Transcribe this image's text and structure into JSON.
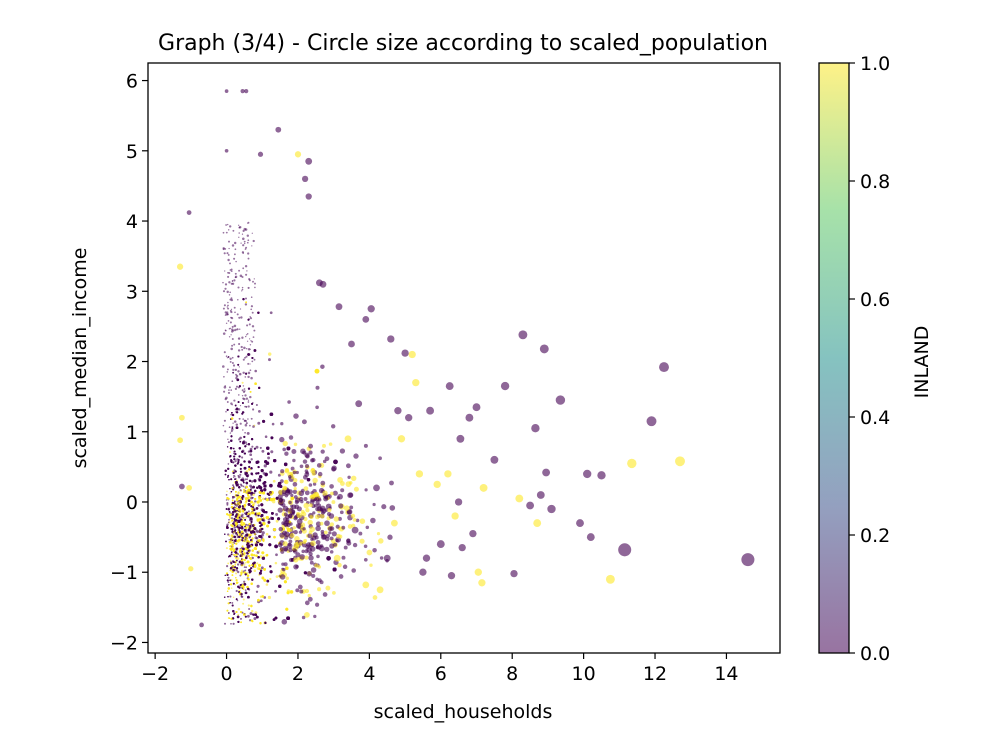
{
  "chart_data": {
    "type": "scatter",
    "title": "Graph (3/4) - Circle size according to scaled_population",
    "xlabel": "scaled_households",
    "ylabel": "scaled_median_income",
    "xlim": [
      -2.2,
      15.5
    ],
    "ylim": [
      -2.15,
      6.25
    ],
    "xticks": [
      -2,
      0,
      2,
      4,
      6,
      8,
      10,
      12,
      14
    ],
    "yticks": [
      -2,
      -1,
      0,
      1,
      2,
      3,
      4,
      5,
      6
    ],
    "grid": false,
    "colorbar": {
      "label": "INLAND",
      "range": [
        0.0,
        1.0
      ],
      "ticks": [
        0.0,
        0.2,
        0.4,
        0.6,
        0.8,
        1.0
      ],
      "colormap": "viridis",
      "alpha": 0.55,
      "low_color": "#440154",
      "high_color": "#fde725"
    },
    "points": [
      {
        "x": 14.6,
        "y": -0.82,
        "inland": 0,
        "size": 2.2
      },
      {
        "x": 11.15,
        "y": -0.68,
        "inland": 0,
        "size": 2.2
      },
      {
        "x": 12.7,
        "y": 0.58,
        "inland": 1,
        "size": 1.6
      },
      {
        "x": 12.25,
        "y": 1.92,
        "inland": 0,
        "size": 1.6
      },
      {
        "x": 11.9,
        "y": 1.15,
        "inland": 0,
        "size": 1.6
      },
      {
        "x": 11.35,
        "y": 0.55,
        "inland": 1,
        "size": 1.5
      },
      {
        "x": 10.75,
        "y": -1.1,
        "inland": 1,
        "size": 1.4
      },
      {
        "x": 10.5,
        "y": 0.38,
        "inland": 0,
        "size": 1.3
      },
      {
        "x": 10.1,
        "y": 0.4,
        "inland": 0,
        "size": 1.3
      },
      {
        "x": 10.2,
        "y": -0.5,
        "inland": 0,
        "size": 1.2
      },
      {
        "x": 9.9,
        "y": -0.3,
        "inland": 0,
        "size": 1.2
      },
      {
        "x": 9.35,
        "y": 1.45,
        "inland": 0,
        "size": 1.5
      },
      {
        "x": 9.1,
        "y": -0.1,
        "inland": 0,
        "size": 1.3
      },
      {
        "x": 8.9,
        "y": 2.18,
        "inland": 0,
        "size": 1.4
      },
      {
        "x": 8.3,
        "y": 2.38,
        "inland": 0,
        "size": 1.4
      },
      {
        "x": 8.65,
        "y": 1.05,
        "inland": 0,
        "size": 1.3
      },
      {
        "x": 8.95,
        "y": 0.42,
        "inland": 0,
        "size": 1.2
      },
      {
        "x": 8.8,
        "y": 0.1,
        "inland": 0,
        "size": 1.2
      },
      {
        "x": 8.5,
        "y": -0.05,
        "inland": 0,
        "size": 1.2
      },
      {
        "x": 8.7,
        "y": -0.3,
        "inland": 1,
        "size": 1.2
      },
      {
        "x": 8.2,
        "y": 0.05,
        "inland": 1,
        "size": 1.2
      },
      {
        "x": 7.8,
        "y": 1.65,
        "inland": 0,
        "size": 1.3
      },
      {
        "x": 7.5,
        "y": 0.6,
        "inland": 0,
        "size": 1.2
      },
      {
        "x": 7.2,
        "y": 0.2,
        "inland": 1,
        "size": 1.2
      },
      {
        "x": 7.05,
        "y": -1.0,
        "inland": 1,
        "size": 1.1
      },
      {
        "x": 7.15,
        "y": -1.15,
        "inland": 1,
        "size": 1.1
      },
      {
        "x": 8.05,
        "y": -1.02,
        "inland": 0,
        "size": 1.1
      },
      {
        "x": 7.0,
        "y": 1.35,
        "inland": 0,
        "size": 1.2
      },
      {
        "x": 6.8,
        "y": 1.2,
        "inland": 0,
        "size": 1.2
      },
      {
        "x": 6.55,
        "y": 0.9,
        "inland": 0,
        "size": 1.2
      },
      {
        "x": 6.25,
        "y": 1.65,
        "inland": 0,
        "size": 1.2
      },
      {
        "x": 6.0,
        "y": -0.6,
        "inland": 0,
        "size": 1.2
      },
      {
        "x": 6.4,
        "y": -0.2,
        "inland": 1,
        "size": 1.1
      },
      {
        "x": 6.6,
        "y": -0.65,
        "inland": 0,
        "size": 1.1
      },
      {
        "x": 6.9,
        "y": -0.45,
        "inland": 0,
        "size": 1.1
      },
      {
        "x": 6.3,
        "y": -1.05,
        "inland": 0,
        "size": 1.1
      },
      {
        "x": 5.5,
        "y": -1.0,
        "inland": 0,
        "size": 1.1
      },
      {
        "x": 5.7,
        "y": 1.3,
        "inland": 0,
        "size": 1.2
      },
      {
        "x": 5.3,
        "y": 1.7,
        "inland": 1,
        "size": 1.1
      },
      {
        "x": 5.2,
        "y": 2.1,
        "inland": 1,
        "size": 1.1
      },
      {
        "x": 5.0,
        "y": 2.12,
        "inland": 0,
        "size": 1.1
      },
      {
        "x": 4.6,
        "y": 2.32,
        "inland": 0,
        "size": 1.1
      },
      {
        "x": 4.05,
        "y": 2.75,
        "inland": 0,
        "size": 1.1
      },
      {
        "x": 3.9,
        "y": 2.6,
        "inland": 0,
        "size": 1.0
      },
      {
        "x": 3.5,
        "y": 2.25,
        "inland": 0,
        "size": 1.0
      },
      {
        "x": 3.15,
        "y": 2.78,
        "inland": 0,
        "size": 1.0
      },
      {
        "x": 2.6,
        "y": 3.12,
        "inland": 0,
        "size": 1.0
      },
      {
        "x": 2.7,
        "y": 3.1,
        "inland": 0,
        "size": 1.0
      },
      {
        "x": 2.3,
        "y": 4.35,
        "inland": 0,
        "size": 0.9
      },
      {
        "x": 2.2,
        "y": 4.6,
        "inland": 0,
        "size": 0.9
      },
      {
        "x": 2.3,
        "y": 4.85,
        "inland": 0,
        "size": 1.0
      },
      {
        "x": 2.0,
        "y": 4.95,
        "inland": 1,
        "size": 0.9
      },
      {
        "x": 1.45,
        "y": 5.3,
        "inland": 0,
        "size": 0.8
      },
      {
        "x": 0.95,
        "y": 4.95,
        "inland": 0,
        "size": 0.7
      },
      {
        "x": 0.55,
        "y": 5.85,
        "inland": 0,
        "size": 0.5
      },
      {
        "x": 0.45,
        "y": 5.85,
        "inland": 0,
        "size": 0.5
      },
      {
        "x": 0.0,
        "y": 5.85,
        "inland": 0,
        "size": 0.4
      },
      {
        "x": 0.0,
        "y": 5.0,
        "inland": 0,
        "size": 0.4
      },
      {
        "x": -1.05,
        "y": 4.12,
        "inland": 0,
        "size": 0.6
      },
      {
        "x": -1.3,
        "y": 3.35,
        "inland": 1,
        "size": 0.9
      },
      {
        "x": -1.25,
        "y": 1.2,
        "inland": 1,
        "size": 0.8
      },
      {
        "x": -1.3,
        "y": 0.88,
        "inland": 1,
        "size": 0.8
      },
      {
        "x": -1.25,
        "y": 0.22,
        "inland": 0,
        "size": 0.8
      },
      {
        "x": -1.05,
        "y": 0.2,
        "inland": 1,
        "size": 0.8
      },
      {
        "x": -1.0,
        "y": -0.95,
        "inland": 1,
        "size": 0.7
      },
      {
        "x": -0.7,
        "y": -1.75,
        "inland": 0,
        "size": 0.6
      },
      {
        "x": 3.9,
        "y": -1.18,
        "inland": 1,
        "size": 1.0
      },
      {
        "x": 4.3,
        "y": -1.25,
        "inland": 1,
        "size": 1.0
      },
      {
        "x": 4.9,
        "y": 0.9,
        "inland": 1,
        "size": 1.1
      },
      {
        "x": 5.4,
        "y": 0.4,
        "inland": 1,
        "size": 1.1
      },
      {
        "x": 4.7,
        "y": -0.3,
        "inland": 1,
        "size": 1.0
      },
      {
        "x": 5.9,
        "y": 0.25,
        "inland": 1,
        "size": 1.1
      },
      {
        "x": 6.2,
        "y": 0.4,
        "inland": 1,
        "size": 1.1
      },
      {
        "x": 4.8,
        "y": 1.3,
        "inland": 0,
        "size": 1.1
      },
      {
        "x": 5.1,
        "y": 1.2,
        "inland": 0,
        "size": 1.1
      },
      {
        "x": 3.7,
        "y": 1.4,
        "inland": 0,
        "size": 1.0
      },
      {
        "x": 3.4,
        "y": 0.9,
        "inland": 1,
        "size": 1.0
      },
      {
        "x": 3.1,
        "y": -0.8,
        "inland": 1,
        "size": 1.0
      },
      {
        "x": 3.6,
        "y": -0.4,
        "inland": 0,
        "size": 1.0
      },
      {
        "x": 4.5,
        "y": -0.8,
        "inland": 0,
        "size": 1.0
      },
      {
        "x": 5.6,
        "y": -0.8,
        "inland": 0,
        "size": 1.1
      },
      {
        "x": 6.5,
        "y": 0.0,
        "inland": 0,
        "size": 1.1
      },
      {
        "x": 4.2,
        "y": 0.2,
        "inland": 0,
        "size": 1.0
      }
    ]
  }
}
